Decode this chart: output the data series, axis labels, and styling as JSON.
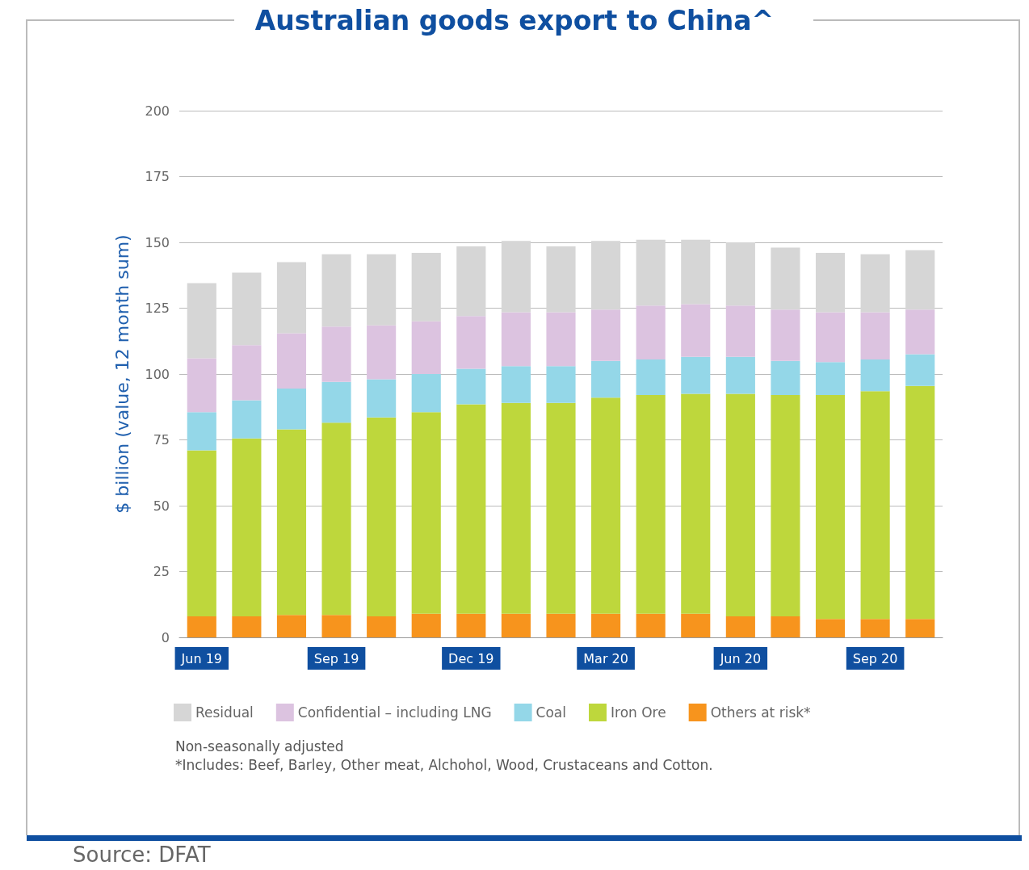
{
  "chart_data": {
    "type": "bar",
    "stacked": true,
    "title": "Australian goods export to China^",
    "ylabel": "$ billion (value, 12 month sum)",
    "categories": [
      "Jun 19",
      null,
      null,
      "Sep 19",
      null,
      null,
      "Dec 19",
      null,
      null,
      "Mar 20",
      null,
      null,
      "Jun 20",
      null,
      null,
      "Sep 20",
      null
    ],
    "series": [
      {
        "name": "Others at risk*",
        "color": "#f7941d",
        "values": [
          8,
          8,
          8.5,
          8.5,
          8,
          9,
          9,
          9,
          9,
          9,
          9,
          9,
          8,
          8,
          7,
          7,
          7
        ]
      },
      {
        "name": "Iron Ore",
        "color": "#bed73c",
        "values": [
          63,
          67.5,
          70.5,
          73,
          75.5,
          76.5,
          79.5,
          80,
          80,
          82,
          83,
          83.5,
          84.5,
          84,
          85,
          86.5,
          88.5
        ]
      },
      {
        "name": "Coal",
        "color": "#94d7e8",
        "values": [
          14.5,
          14.5,
          15.5,
          15.5,
          14.5,
          14.5,
          13.5,
          14,
          14,
          14,
          13.5,
          14,
          14,
          13,
          12.5,
          12,
          12
        ]
      },
      {
        "name": "Confidential – including LNG",
        "color": "#dcc3e0",
        "values": [
          20.5,
          21,
          21,
          21,
          20.5,
          20,
          20,
          20.5,
          20.5,
          19.5,
          20.5,
          20,
          19.5,
          19.5,
          19,
          18,
          17
        ]
      },
      {
        "name": "Residual",
        "color": "#d6d6d6",
        "values": [
          28.5,
          27.5,
          27,
          27.5,
          27,
          26,
          26.5,
          27,
          25,
          26,
          25,
          24.5,
          24,
          23.5,
          22.5,
          22,
          22.5
        ]
      }
    ],
    "ylim": [
      0,
      200
    ],
    "yticks": [
      0,
      25,
      50,
      75,
      100,
      125,
      150,
      175,
      200
    ],
    "grid": "y",
    "legend": "bottom",
    "annotations": [
      "Non-seasonally adjusted",
      "*Includes: Beef, Barley, Other meat, Alchohol, Wood, Crustaceans and Cotton.",
      "Source: DFAT"
    ]
  }
}
